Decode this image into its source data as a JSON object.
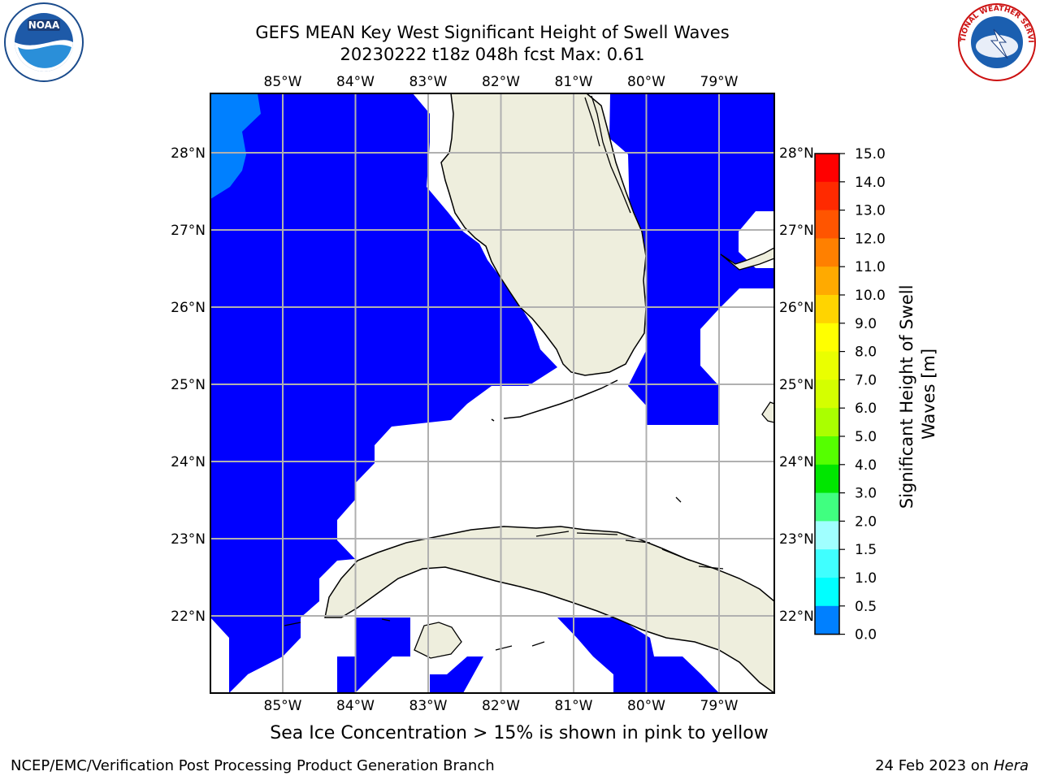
{
  "title_line1": "GEFS MEAN Key West Significant Height of Swell Waves",
  "title_line2": "20230222 t18z 048h fcst   Max: 0.61",
  "note": "Sea Ice Concentration > 15% is shown in pink to yellow",
  "footer_left": "NCEP/EMC/Verification Post Processing Product Generation Branch",
  "footer_right_date": "24 Feb 2023 on ",
  "footer_right_host": "Hera",
  "logos": {
    "left": "NOAA",
    "right": "NATIONAL WEATHER SERVICE"
  },
  "map": {
    "lon_ticks": [
      "85°W",
      "84°W",
      "83°W",
      "82°W",
      "81°W",
      "80°W",
      "79°W"
    ],
    "lat_ticks": [
      "28°N",
      "27°N",
      "26°N",
      "25°N",
      "24°N",
      "23°N",
      "22°N"
    ],
    "lon_values": [
      -85,
      -84,
      -83,
      -82,
      -81,
      -80,
      -79
    ],
    "lat_values": [
      28,
      27,
      26,
      25,
      24,
      23,
      22
    ],
    "colors": {
      "ocean_low": "#0000ff",
      "ocean_mid": "#0080ff",
      "land": "#eeeedd",
      "no_data": "#ffffff",
      "grid": "#b0b0b0"
    }
  },
  "colorbar": {
    "label": "Significant Height of Swell Waves [m]",
    "label_line1": "Significant Height of Swell",
    "label_line2": "Waves [m]",
    "ticks": [
      "15.0",
      "14.0",
      "13.0",
      "12.0",
      "11.0",
      "10.0",
      "9.0",
      "8.0",
      "7.0",
      "6.0",
      "5.0",
      "4.0",
      "3.0",
      "2.0",
      "1.5",
      "1.0",
      "0.5",
      "0.0"
    ],
    "colors": [
      "#ff0000",
      "#ff2a00",
      "#ff5500",
      "#ff8000",
      "#ffaa00",
      "#ffd400",
      "#ffff00",
      "#eaff00",
      "#d4ff00",
      "#aaff00",
      "#55ff00",
      "#00e600",
      "#40ff80",
      "#a0ffff",
      "#40ffff",
      "#00ffff",
      "#0080ff",
      "#0000ff"
    ]
  }
}
